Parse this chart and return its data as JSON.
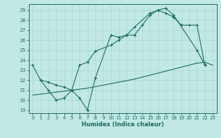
{
  "xlabel": "Humidex (Indice chaleur)",
  "bg_color": "#c2e8e5",
  "line_color": "#1a6b60",
  "grid_color": "#a8d4d0",
  "xlim": [
    -0.5,
    23.5
  ],
  "ylim": [
    18.7,
    29.6
  ],
  "xticks": [
    0,
    1,
    2,
    3,
    4,
    5,
    6,
    7,
    8,
    9,
    10,
    11,
    12,
    13,
    14,
    15,
    16,
    17,
    18,
    19,
    20,
    21,
    22,
    23
  ],
  "yticks": [
    19,
    20,
    21,
    22,
    23,
    24,
    25,
    26,
    27,
    28,
    29
  ],
  "line1_x": [
    0,
    1,
    2,
    3,
    4,
    5,
    6,
    7,
    8,
    10,
    11,
    12,
    13,
    15,
    16,
    17,
    18,
    21,
    22
  ],
  "line1_y": [
    23.5,
    22.0,
    21.0,
    20.0,
    20.2,
    21.0,
    20.2,
    19.0,
    22.2,
    26.5,
    26.3,
    26.5,
    27.3,
    28.7,
    29.0,
    29.2,
    28.5,
    25.0,
    23.5
  ],
  "line2_x": [
    1,
    2,
    3,
    4,
    5,
    6,
    7,
    8,
    10,
    11,
    12,
    13,
    14,
    15,
    16,
    17,
    18,
    19,
    20,
    21,
    22
  ],
  "line2_y": [
    22.0,
    21.8,
    21.5,
    21.3,
    21.0,
    23.5,
    23.8,
    24.9,
    25.5,
    26.0,
    26.5,
    26.5,
    27.5,
    28.5,
    29.0,
    28.7,
    28.3,
    27.5,
    27.5,
    27.5,
    23.5
  ],
  "line3_x": [
    0,
    1,
    2,
    3,
    4,
    5,
    6,
    7,
    8,
    9,
    10,
    11,
    12,
    13,
    14,
    15,
    16,
    17,
    18,
    19,
    20,
    21,
    22,
    23
  ],
  "line3_y": [
    20.5,
    20.6,
    20.7,
    20.8,
    20.9,
    21.0,
    21.1,
    21.2,
    21.35,
    21.5,
    21.65,
    21.8,
    21.95,
    22.1,
    22.3,
    22.5,
    22.7,
    22.9,
    23.1,
    23.3,
    23.5,
    23.7,
    23.8,
    23.5
  ]
}
